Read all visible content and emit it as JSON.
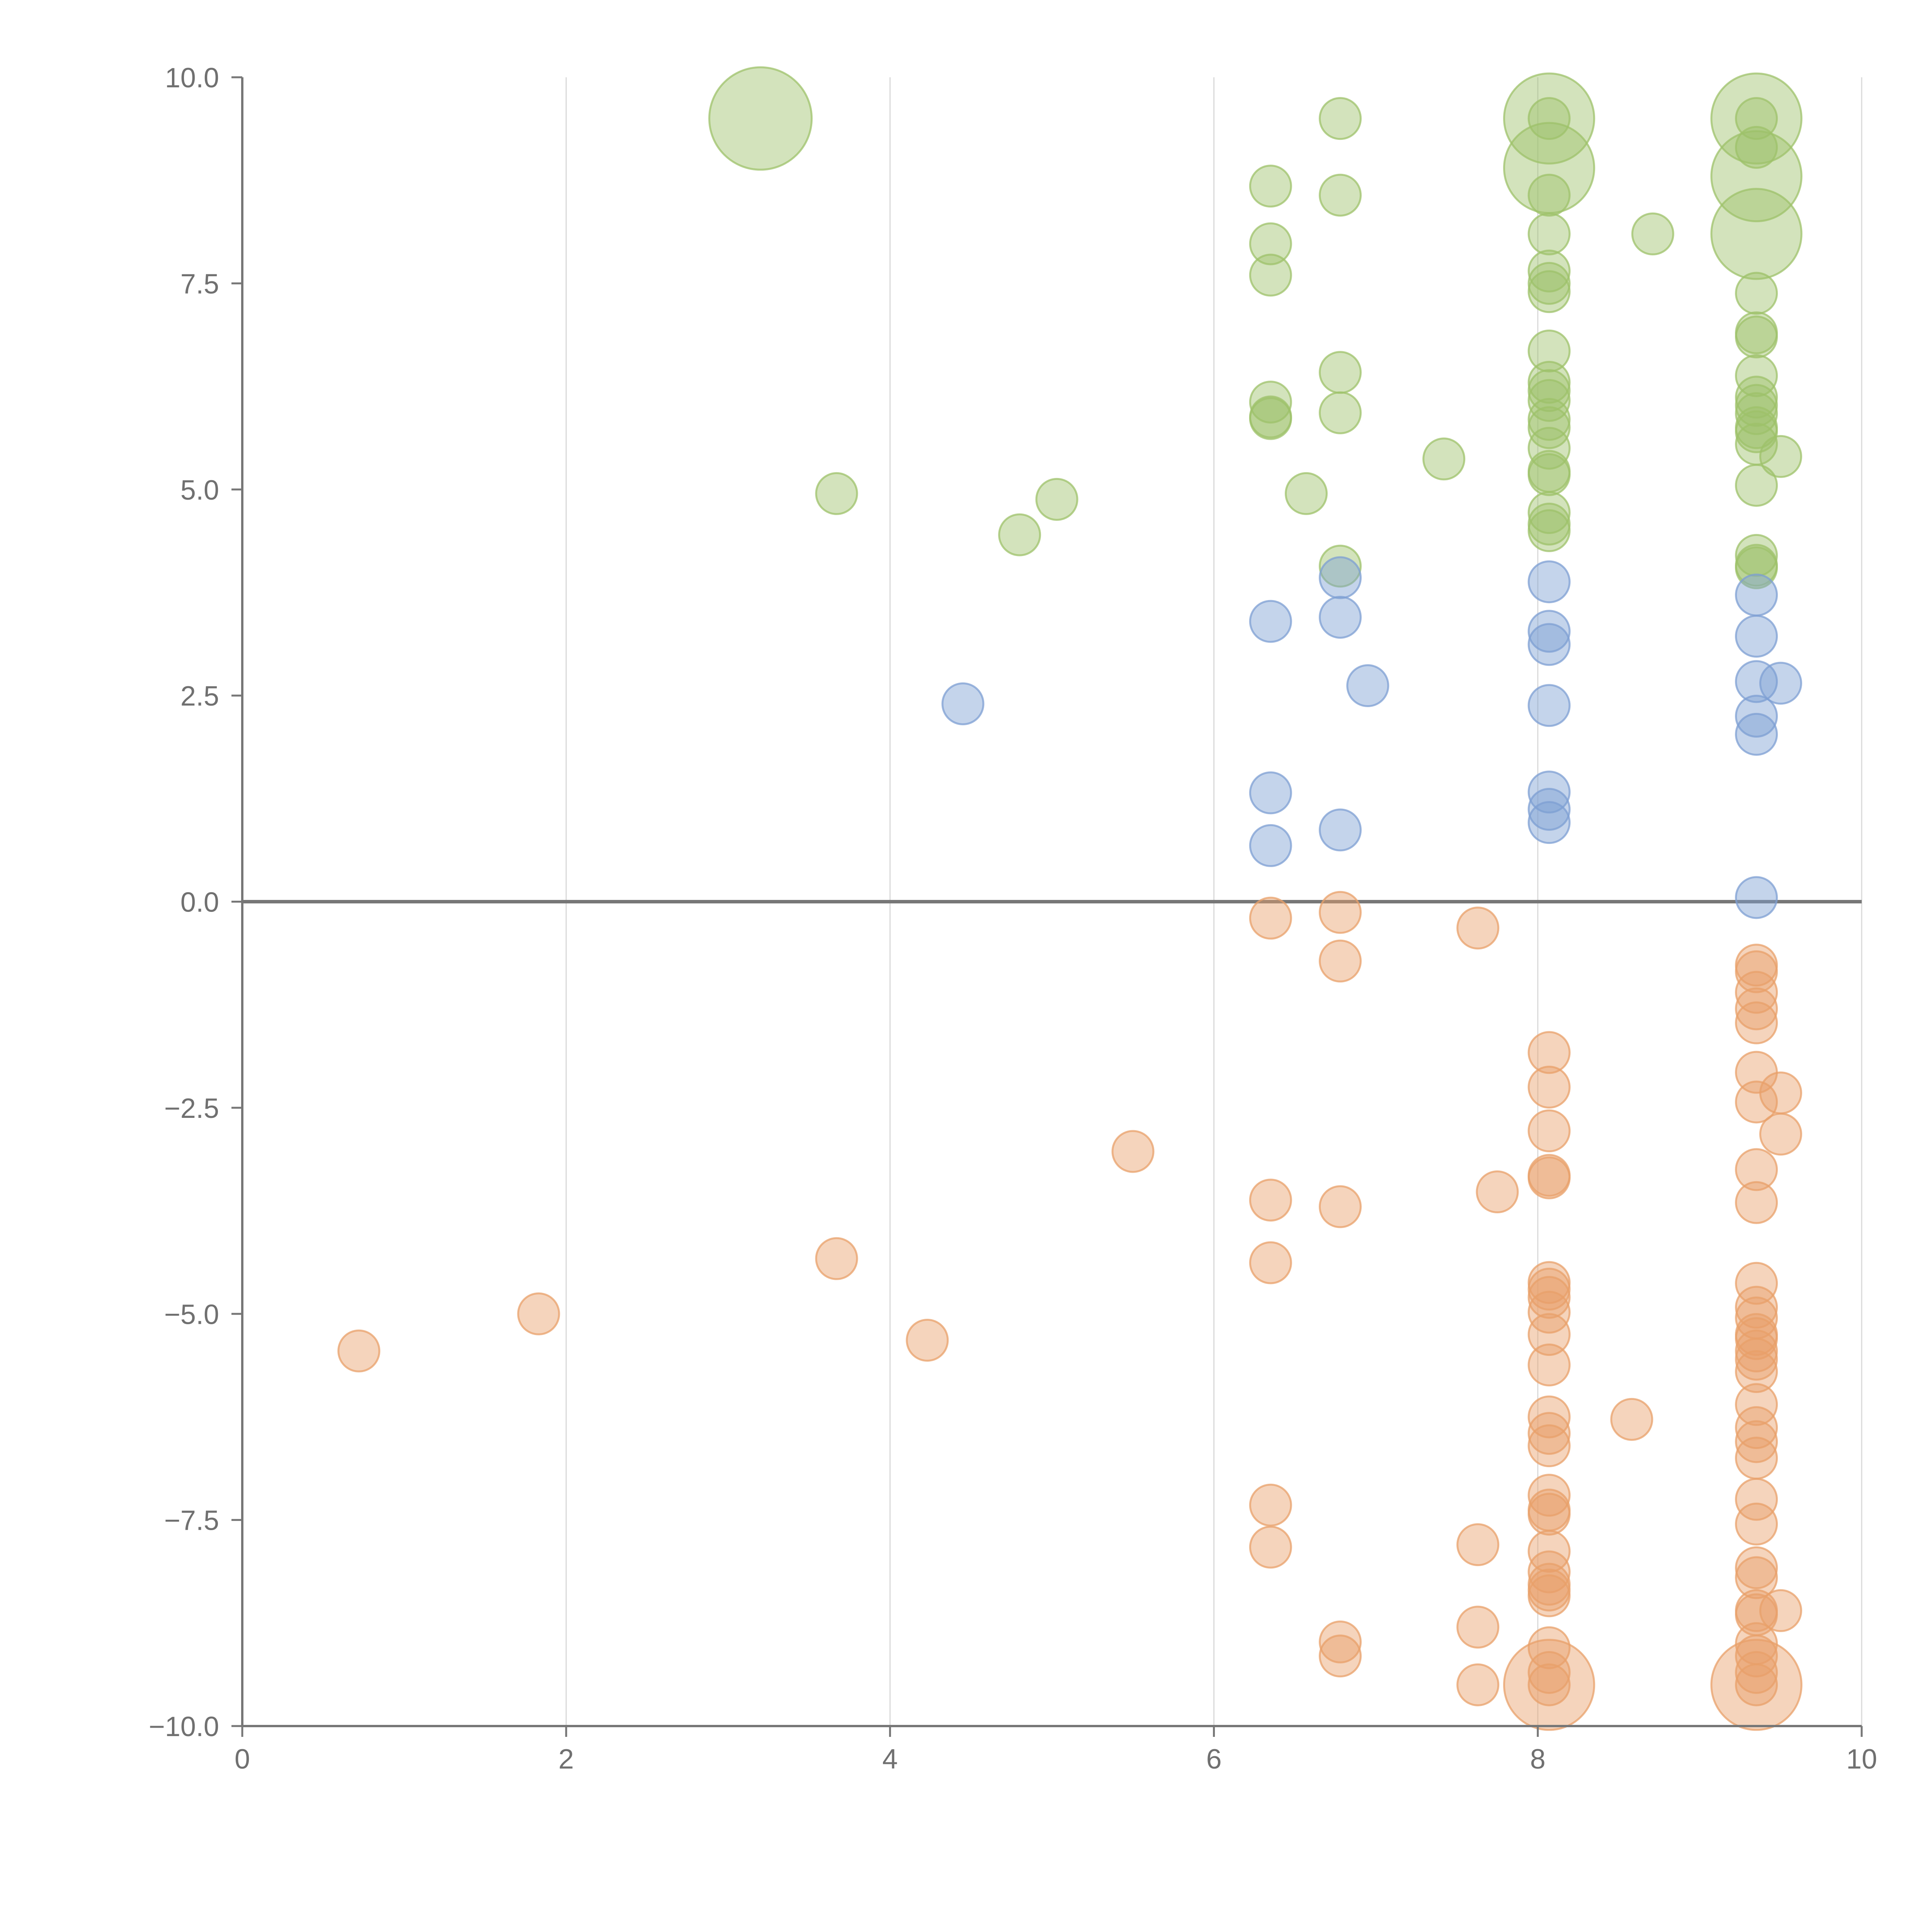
{
  "chart_data": {
    "type": "scatter",
    "title": "",
    "xlabel": "",
    "ylabel": "",
    "xlim": [
      0,
      10
    ],
    "ylim": [
      -10,
      10
    ],
    "x_ticks": [
      0,
      2,
      4,
      6,
      8,
      10
    ],
    "x_tick_labels": [
      "0",
      "2",
      "4",
      "6",
      "8",
      "10"
    ],
    "y_ticks": [
      10,
      7.5,
      5,
      2.5,
      0,
      -2.5,
      -5,
      -7.5,
      -10
    ],
    "y_tick_labels": [
      "10.0",
      "7.5",
      "5.0",
      "2.5",
      "0.0",
      "−2.5",
      "−5.0",
      "−7.5",
      "−10.0"
    ],
    "vertical_grid": true,
    "zero_line": true,
    "legend": "none",
    "size_unit_note": "relative bubble size (1 = standard point)",
    "series": [
      {
        "name": "green",
        "color": "#9dc26a",
        "points": [
          [
            3.2,
            9.5,
            2.5
          ],
          [
            3.67,
            4.95,
            1
          ],
          [
            4.8,
            4.45,
            1
          ],
          [
            5.03,
            4.88,
            1
          ],
          [
            6.35,
            8.68,
            1
          ],
          [
            6.35,
            7.98,
            1
          ],
          [
            6.35,
            7.6,
            1
          ],
          [
            6.35,
            6.06,
            1
          ],
          [
            6.35,
            5.86,
            1
          ],
          [
            6.35,
            5.88,
            1
          ],
          [
            6.57,
            4.95,
            1
          ],
          [
            6.78,
            9.5,
            1
          ],
          [
            6.78,
            8.57,
            1
          ],
          [
            6.78,
            6.42,
            1
          ],
          [
            6.78,
            5.93,
            1
          ],
          [
            6.78,
            4.07,
            1
          ],
          [
            7.42,
            5.37,
            1
          ],
          [
            8.07,
            9.5,
            2.2
          ],
          [
            8.07,
            8.9,
            2.2
          ],
          [
            8.07,
            9.5,
            1
          ],
          [
            8.07,
            8.57,
            1
          ],
          [
            8.07,
            8.1,
            1
          ],
          [
            8.07,
            7.65,
            1
          ],
          [
            8.07,
            7.5,
            1
          ],
          [
            8.07,
            7.4,
            1
          ],
          [
            8.07,
            6.68,
            1
          ],
          [
            8.07,
            6.3,
            1
          ],
          [
            8.07,
            6.2,
            1
          ],
          [
            8.07,
            6.08,
            1
          ],
          [
            8.07,
            5.85,
            1
          ],
          [
            8.07,
            5.75,
            1
          ],
          [
            8.07,
            5.5,
            1
          ],
          [
            8.07,
            5.22,
            1
          ],
          [
            8.07,
            5.18,
            1
          ],
          [
            8.07,
            4.72,
            1
          ],
          [
            8.07,
            4.58,
            1
          ],
          [
            8.07,
            4.5,
            1
          ],
          [
            8.71,
            8.1,
            1
          ],
          [
            9.35,
            9.5,
            2.2
          ],
          [
            9.35,
            8.8,
            2.2
          ],
          [
            9.35,
            8.1,
            2.2
          ],
          [
            9.35,
            9.5,
            1
          ],
          [
            9.35,
            9.15,
            1
          ],
          [
            9.35,
            7.38,
            1
          ],
          [
            9.35,
            6.9,
            1
          ],
          [
            9.35,
            6.85,
            1
          ],
          [
            9.35,
            6.38,
            1
          ],
          [
            9.35,
            6.12,
            1
          ],
          [
            9.35,
            6.02,
            1
          ],
          [
            9.35,
            5.92,
            1
          ],
          [
            9.35,
            5.75,
            1
          ],
          [
            9.35,
            5.7,
            1
          ],
          [
            9.35,
            5.55,
            1
          ],
          [
            9.35,
            5.05,
            1
          ],
          [
            9.35,
            4.2,
            1
          ],
          [
            9.35,
            4.08,
            1
          ],
          [
            9.35,
            4.05,
            1
          ],
          [
            9.5,
            5.4,
            1
          ]
        ]
      },
      {
        "name": "blue",
        "color": "#7d9fd3",
        "points": [
          [
            4.45,
            2.4,
            1
          ],
          [
            6.35,
            3.4,
            1
          ],
          [
            6.35,
            1.32,
            1
          ],
          [
            6.35,
            0.68,
            1
          ],
          [
            6.78,
            3.93,
            1
          ],
          [
            6.78,
            3.45,
            1
          ],
          [
            6.78,
            0.87,
            1
          ],
          [
            6.95,
            2.62,
            1
          ],
          [
            8.07,
            3.88,
            1
          ],
          [
            8.07,
            3.28,
            1
          ],
          [
            8.07,
            3.12,
            1
          ],
          [
            8.07,
            2.38,
            1
          ],
          [
            8.07,
            1.33,
            1
          ],
          [
            8.07,
            1.12,
            1
          ],
          [
            8.07,
            0.96,
            1
          ],
          [
            9.35,
            3.72,
            1
          ],
          [
            9.35,
            3.22,
            1
          ],
          [
            9.35,
            2.67,
            1
          ],
          [
            9.35,
            2.25,
            1
          ],
          [
            9.35,
            2.03,
            1
          ],
          [
            9.35,
            0.05,
            1
          ],
          [
            9.5,
            2.65,
            1
          ]
        ]
      },
      {
        "name": "orange",
        "color": "#e8a06a",
        "points": [
          [
            0.72,
            -5.45,
            1
          ],
          [
            1.83,
            -5.0,
            1
          ],
          [
            3.67,
            -4.33,
            1
          ],
          [
            4.23,
            -5.32,
            1
          ],
          [
            5.5,
            -3.03,
            1
          ],
          [
            6.35,
            -0.2,
            1
          ],
          [
            6.35,
            -3.62,
            1
          ],
          [
            6.35,
            -4.38,
            1
          ],
          [
            6.35,
            -7.32,
            1
          ],
          [
            6.35,
            -7.83,
            1
          ],
          [
            6.78,
            -0.13,
            1
          ],
          [
            6.78,
            -0.72,
            1
          ],
          [
            6.78,
            -3.7,
            1
          ],
          [
            6.78,
            -8.98,
            1
          ],
          [
            6.78,
            -9.15,
            1
          ],
          [
            7.63,
            -0.32,
            1
          ],
          [
            7.63,
            -7.8,
            1
          ],
          [
            7.63,
            -8.8,
            1
          ],
          [
            7.63,
            -9.5,
            1
          ],
          [
            7.75,
            -3.52,
            1
          ],
          [
            8.07,
            -9.5,
            2.2
          ],
          [
            8.07,
            -1.83,
            1
          ],
          [
            8.07,
            -2.25,
            1
          ],
          [
            8.07,
            -2.78,
            1
          ],
          [
            8.07,
            -3.32,
            1
          ],
          [
            8.07,
            -3.35,
            1
          ],
          [
            8.07,
            -4.62,
            1
          ],
          [
            8.07,
            -4.7,
            1
          ],
          [
            8.07,
            -4.8,
            1
          ],
          [
            8.07,
            -4.98,
            1
          ],
          [
            8.07,
            -5.25,
            1
          ],
          [
            8.07,
            -5.62,
            1
          ],
          [
            8.07,
            -6.25,
            1
          ],
          [
            8.07,
            -6.45,
            1
          ],
          [
            8.07,
            -6.6,
            1
          ],
          [
            8.07,
            -7.2,
            1
          ],
          [
            8.07,
            -7.38,
            1
          ],
          [
            8.07,
            -7.43,
            1
          ],
          [
            8.07,
            -7.88,
            1
          ],
          [
            8.07,
            -8.13,
            1
          ],
          [
            8.07,
            -8.28,
            1
          ],
          [
            8.07,
            -8.35,
            1
          ],
          [
            8.07,
            -8.42,
            1
          ],
          [
            8.07,
            -9.05,
            1
          ],
          [
            8.07,
            -9.35,
            1
          ],
          [
            8.07,
            -9.5,
            1
          ],
          [
            8.58,
            -6.28,
            1
          ],
          [
            9.35,
            -9.5,
            2.2
          ],
          [
            9.35,
            -0.77,
            1
          ],
          [
            9.35,
            -0.85,
            1
          ],
          [
            9.35,
            -1.1,
            1
          ],
          [
            9.35,
            -1.3,
            1
          ],
          [
            9.35,
            -1.47,
            1
          ],
          [
            9.35,
            -2.07,
            1
          ],
          [
            9.35,
            -2.43,
            1
          ],
          [
            9.35,
            -3.25,
            1
          ],
          [
            9.35,
            -3.65,
            1
          ],
          [
            9.35,
            -4.63,
            1
          ],
          [
            9.35,
            -4.92,
            1
          ],
          [
            9.35,
            -5.05,
            1
          ],
          [
            9.35,
            -5.25,
            1
          ],
          [
            9.35,
            -5.3,
            1
          ],
          [
            9.35,
            -5.45,
            1
          ],
          [
            9.35,
            -5.55,
            1
          ],
          [
            9.35,
            -5.7,
            1
          ],
          [
            9.35,
            -6.1,
            1
          ],
          [
            9.35,
            -6.38,
            1
          ],
          [
            9.35,
            -6.55,
            1
          ],
          [
            9.35,
            -6.75,
            1
          ],
          [
            9.35,
            -7.25,
            1
          ],
          [
            9.35,
            -7.55,
            1
          ],
          [
            9.35,
            -8.08,
            1
          ],
          [
            9.35,
            -8.2,
            1
          ],
          [
            9.35,
            -8.6,
            1
          ],
          [
            9.35,
            -8.65,
            1
          ],
          [
            9.35,
            -9.0,
            1
          ],
          [
            9.35,
            -9.15,
            1
          ],
          [
            9.35,
            -9.35,
            1
          ],
          [
            9.35,
            -9.5,
            1
          ],
          [
            9.5,
            -2.32,
            1
          ],
          [
            9.5,
            -2.82,
            1
          ],
          [
            9.5,
            -8.6,
            1
          ]
        ]
      }
    ]
  }
}
